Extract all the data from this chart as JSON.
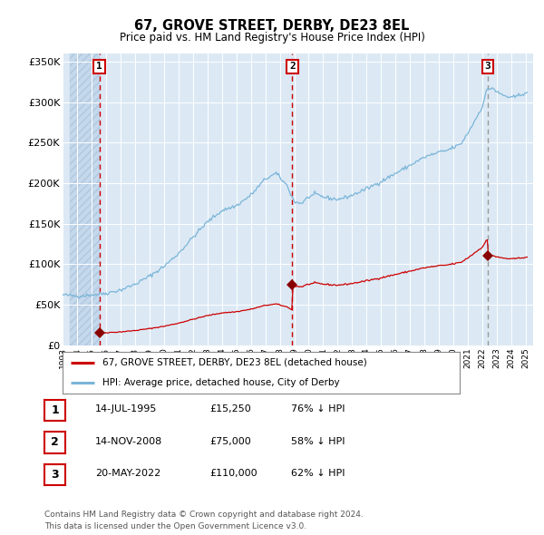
{
  "title": "67, GROVE STREET, DERBY, DE23 8EL",
  "subtitle": "Price paid vs. HM Land Registry's House Price Index (HPI)",
  "ylim": [
    0,
    360000
  ],
  "yticks": [
    0,
    50000,
    100000,
    150000,
    200000,
    250000,
    300000,
    350000
  ],
  "ytick_labels": [
    "£0",
    "£50K",
    "£100K",
    "£150K",
    "£200K",
    "£250K",
    "£300K",
    "£350K"
  ],
  "xmin_year": 1993.5,
  "xmax_year": 2025.5,
  "background_color": "#dce9f5",
  "hatch_color": "#c5d8ec",
  "grid_color": "#ffffff",
  "purchases": [
    {
      "date_num": 1995.54,
      "price": 15250,
      "label": "1"
    },
    {
      "date_num": 2008.87,
      "price": 75000,
      "label": "2"
    },
    {
      "date_num": 2022.38,
      "price": 110000,
      "label": "3"
    }
  ],
  "purchase_dates_str": [
    "14-JUL-1995",
    "14-NOV-2008",
    "20-MAY-2022"
  ],
  "purchase_prices_str": [
    "£15,250",
    "£75,000",
    "£110,000"
  ],
  "purchase_hpi_pct": [
    "76% ↓ HPI",
    "58% ↓ HPI",
    "62% ↓ HPI"
  ],
  "legend_property": "67, GROVE STREET, DERBY, DE23 8EL (detached house)",
  "legend_hpi": "HPI: Average price, detached house, City of Derby",
  "property_line_color": "#cc0000",
  "hpi_line_color": "#7ab5d8",
  "marker_color": "#880000",
  "vline_red_color": "#cc0000",
  "vline_grey_color": "#999999",
  "footnote": "Contains HM Land Registry data © Crown copyright and database right 2024.\nThis data is licensed under the Open Government Licence v3.0.",
  "xtick_years": [
    1993,
    1994,
    1995,
    1996,
    1997,
    1998,
    1999,
    2000,
    2001,
    2002,
    2003,
    2004,
    2005,
    2006,
    2007,
    2008,
    2009,
    2010,
    2011,
    2012,
    2013,
    2014,
    2015,
    2016,
    2017,
    2018,
    2019,
    2020,
    2021,
    2022,
    2023,
    2024,
    2025
  ]
}
